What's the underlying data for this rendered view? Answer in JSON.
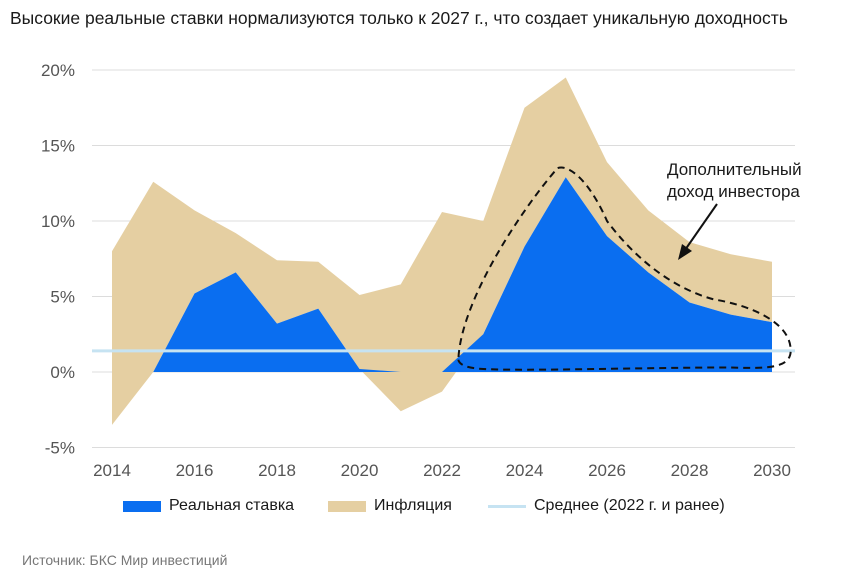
{
  "title": "Высокие реальные ставки нормализуются только к 2027 г., что создает уникальную доходность",
  "source": "Источник: БКС Мир инвестиций",
  "annotation": [
    "Дополнительный",
    "доход инвестора"
  ],
  "colors": {
    "real_rate": "#0a6ef0",
    "inflation": "#e5cfa2",
    "average": "#c6e3f2",
    "grid": "#dcdcdc",
    "outline": "#111111"
  },
  "chart_data": {
    "type": "area",
    "x": [
      2014,
      2015,
      2016,
      2017,
      2018,
      2019,
      2020,
      2021,
      2022,
      2023,
      2024,
      2025,
      2026,
      2027,
      2028,
      2029,
      2030
    ],
    "x_tick_labels": [
      "2014",
      "2016",
      "2018",
      "2020",
      "2022",
      "2024",
      "2026",
      "2028",
      "2030"
    ],
    "y_tick_labels": [
      "20%",
      "15%",
      "10%",
      "5%",
      "0%",
      "-5%"
    ],
    "ylim": [
      -5,
      20
    ],
    "y_ticks": [
      -5,
      0,
      5,
      10,
      15,
      20
    ],
    "grid": true,
    "legend_position": "bottom",
    "series": [
      {
        "name": "Реальная ставка",
        "values": [
          -3.5,
          0.0,
          5.2,
          6.6,
          3.2,
          4.2,
          0.2,
          -2.6,
          -1.3,
          2.5,
          8.3,
          12.9,
          9.0,
          6.6,
          4.6,
          3.8,
          3.3
        ]
      },
      {
        "name": "Инфляция",
        "values": [
          8.0,
          12.6,
          10.7,
          9.2,
          7.4,
          7.3,
          5.1,
          5.8,
          10.6,
          10.0,
          17.5,
          19.5,
          13.9,
          10.7,
          8.6,
          7.8,
          7.3
        ]
      },
      {
        "name": "Среднее (2022 г. и ранее)",
        "values": [
          1.4,
          1.4,
          1.4,
          1.4,
          1.4,
          1.4,
          1.4,
          1.4,
          1.4,
          1.4,
          1.4,
          1.4,
          1.4,
          1.4,
          1.4,
          1.4,
          1.4
        ]
      }
    ]
  }
}
